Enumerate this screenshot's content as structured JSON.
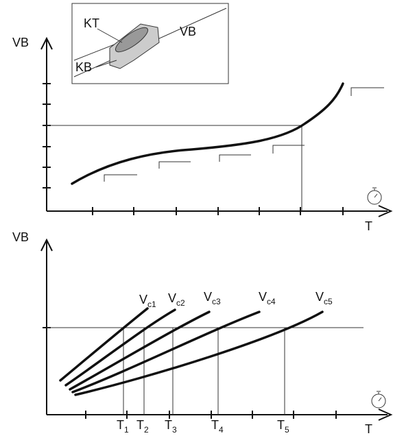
{
  "top_chart": {
    "y_label": "VB",
    "x_label": "T",
    "inset": {
      "labels": [
        "KT",
        "VB",
        "KB"
      ]
    }
  },
  "bottom_chart": {
    "y_label": "VB",
    "x_label": "T",
    "curves": [
      {
        "base": "V",
        "sub": "c1"
      },
      {
        "base": "V",
        "sub": "c2"
      },
      {
        "base": "V",
        "sub": "c3"
      },
      {
        "base": "V",
        "sub": "c4"
      },
      {
        "base": "V",
        "sub": "c5"
      }
    ],
    "times": [
      {
        "base": "T",
        "sub": "1"
      },
      {
        "base": "T",
        "sub": "2"
      },
      {
        "base": "T",
        "sub": "3"
      },
      {
        "base": "T",
        "sub": "4"
      },
      {
        "base": "T",
        "sub": "5"
      }
    ]
  }
}
